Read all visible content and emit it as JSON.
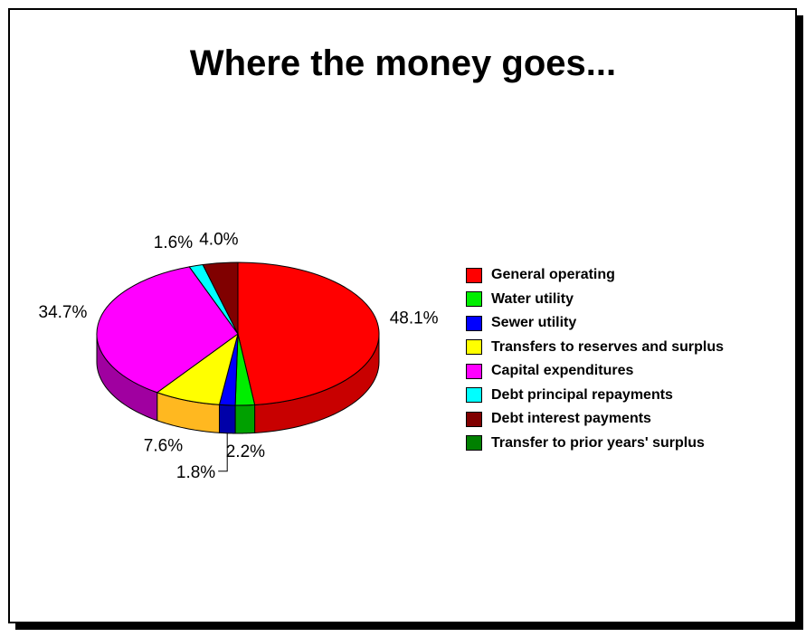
{
  "chart_data": {
    "type": "pie",
    "title": "Where the money goes...",
    "categories": [
      "General operating",
      "Water utility",
      "Sewer utility",
      "Transfers to reserves and surplus",
      "Capital expenditures",
      "Debt principal repayments",
      "Debt interest payments",
      "Transfer to prior years' surplus"
    ],
    "values": [
      48.1,
      2.2,
      1.8,
      7.6,
      34.7,
      1.6,
      4.0,
      0.0
    ],
    "labels": [
      "48.1%",
      "2.2%",
      "1.8%",
      "7.6%",
      "34.7%",
      "1.6%",
      "4.0%",
      ""
    ],
    "colors": [
      "#ff0000",
      "#00ee00",
      "#0000ff",
      "#ffff00",
      "#ff00ff",
      "#00ffff",
      "#800000",
      "#008000"
    ],
    "side_colors": [
      "#c80000",
      "#00a000",
      "#0000a8",
      "#ffb820",
      "#a000a0",
      "#00b0b0",
      "#500000",
      "#005000"
    ],
    "legend_position": "right",
    "style": "3d-pie"
  }
}
